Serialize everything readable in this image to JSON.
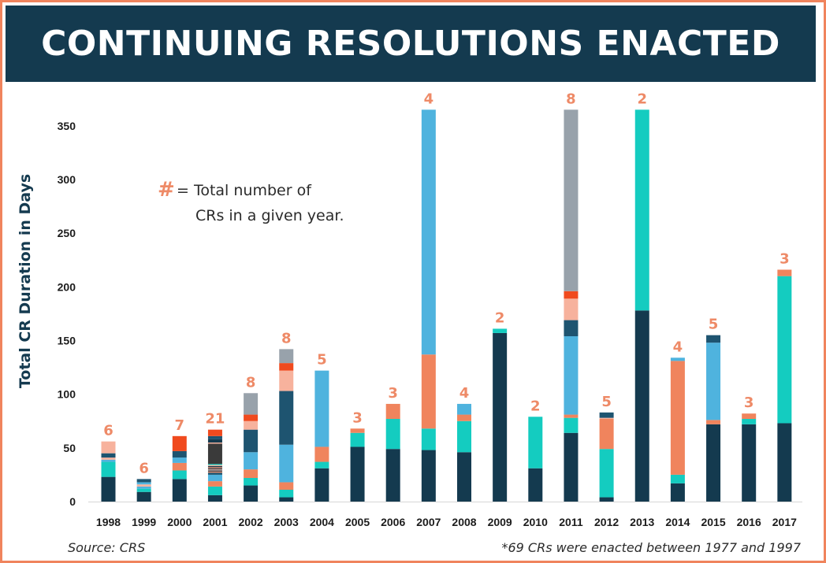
{
  "title": "CONTINUING RESOLUTIONS ENACTED",
  "legend": {
    "symbol": "#",
    "line1": "= Total number of",
    "line2": "CRs in a given year."
  },
  "source": "Source: CRS",
  "footnote": "*69 CRs were enacted between 1977 and 1997",
  "colors": {
    "navy": "#143a4f",
    "teal": "#14ccc0",
    "salmon": "#f0845d",
    "sky": "#4fb3de",
    "steel": "#1e5470",
    "peach": "#f7b29d",
    "red": "#f04a1e",
    "charcoal": "#3a3a3a",
    "gray": "#98a2ab",
    "count": "#ee8a67"
  },
  "chart_data": {
    "type": "bar",
    "stacked": true,
    "title": "CONTINUING RESOLUTIONS ENACTED",
    "xlabel": "",
    "ylabel": "Total CR Duration in Days",
    "ylim": [
      0,
      365
    ],
    "yticks": [
      0,
      50,
      100,
      150,
      200,
      250,
      300,
      350
    ],
    "categories": [
      "1998",
      "1999",
      "2000",
      "2001",
      "2002",
      "2003",
      "2004",
      "2005",
      "2006",
      "2007",
      "2008",
      "2009",
      "2010",
      "2011",
      "2012",
      "2013",
      "2014",
      "2015",
      "2016",
      "2017"
    ],
    "cr_counts": [
      6,
      6,
      7,
      21,
      8,
      8,
      5,
      3,
      3,
      4,
      4,
      2,
      2,
      8,
      5,
      2,
      4,
      5,
      3,
      3
    ],
    "segments": [
      [
        [
          "navy",
          23
        ],
        [
          "teal",
          14
        ],
        [
          "sky",
          2
        ],
        [
          "peach",
          2
        ],
        [
          "steel",
          4
        ],
        [
          "peach",
          11
        ]
      ],
      [
        [
          "navy",
          9
        ],
        [
          "teal",
          3
        ],
        [
          "sky",
          2
        ],
        [
          "peach",
          2
        ],
        [
          "sky",
          2
        ],
        [
          "steel",
          3
        ]
      ],
      [
        [
          "navy",
          21
        ],
        [
          "teal",
          8
        ],
        [
          "salmon",
          7
        ],
        [
          "sky",
          5
        ],
        [
          "steel",
          6
        ],
        [
          "red",
          14
        ]
      ],
      [
        [
          "navy",
          6
        ],
        [
          "teal",
          8
        ],
        [
          "salmon",
          5
        ],
        [
          "sky",
          6
        ],
        [
          "steel",
          2
        ],
        [
          "salmon",
          1
        ],
        [
          "navy",
          1
        ],
        [
          "peach",
          1
        ],
        [
          "navy",
          1
        ],
        [
          "salmon",
          1
        ],
        [
          "navy",
          1
        ],
        [
          "peach",
          1
        ],
        [
          "teal",
          1
        ],
        [
          "charcoal",
          19
        ],
        [
          "peach",
          1
        ],
        [
          "navy",
          3
        ],
        [
          "steel",
          3
        ],
        [
          "red",
          6
        ]
      ],
      [
        [
          "navy",
          15
        ],
        [
          "teal",
          7
        ],
        [
          "salmon",
          8
        ],
        [
          "sky",
          16
        ],
        [
          "steel",
          21
        ],
        [
          "peach",
          8
        ],
        [
          "red",
          6
        ],
        [
          "gray",
          20
        ]
      ],
      [
        [
          "navy",
          4
        ],
        [
          "teal",
          7
        ],
        [
          "salmon",
          7
        ],
        [
          "sky",
          35
        ],
        [
          "steel",
          50
        ],
        [
          "peach",
          19
        ],
        [
          "red",
          7
        ],
        [
          "gray",
          13
        ]
      ],
      [
        [
          "navy",
          31
        ],
        [
          "teal",
          6
        ],
        [
          "salmon",
          14
        ],
        [
          "sky",
          71
        ]
      ],
      [
        [
          "navy",
          51
        ],
        [
          "teal",
          13
        ],
        [
          "salmon",
          4
        ]
      ],
      [
        [
          "navy",
          49
        ],
        [
          "teal",
          28
        ],
        [
          "salmon",
          14
        ]
      ],
      [
        [
          "navy",
          48
        ],
        [
          "teal",
          20
        ],
        [
          "salmon",
          69
        ],
        [
          "sky",
          228
        ]
      ],
      [
        [
          "navy",
          46
        ],
        [
          "teal",
          29
        ],
        [
          "salmon",
          6
        ],
        [
          "sky",
          10
        ]
      ],
      [
        [
          "navy",
          157
        ],
        [
          "teal",
          4
        ]
      ],
      [
        [
          "navy",
          31
        ],
        [
          "teal",
          48
        ]
      ],
      [
        [
          "navy",
          64
        ],
        [
          "teal",
          14
        ],
        [
          "salmon",
          3
        ],
        [
          "sky",
          73
        ],
        [
          "steel",
          15
        ],
        [
          "peach",
          20
        ],
        [
          "red",
          7
        ],
        [
          "gray",
          169
        ]
      ],
      [
        [
          "navy",
          4
        ],
        [
          "teal",
          45
        ],
        [
          "salmon",
          28
        ],
        [
          "peach",
          1
        ],
        [
          "steel",
          5
        ]
      ],
      [
        [
          "navy",
          178
        ],
        [
          "teal",
          187
        ]
      ],
      [
        [
          "navy",
          17
        ],
        [
          "teal",
          8
        ],
        [
          "salmon",
          106
        ],
        [
          "sky",
          3
        ]
      ],
      [
        [
          "navy",
          72
        ],
        [
          "salmon",
          4
        ],
        [
          "sky",
          72
        ],
        [
          "steel",
          7
        ]
      ],
      [
        [
          "navy",
          72
        ],
        [
          "teal",
          5
        ],
        [
          "salmon",
          5
        ]
      ],
      [
        [
          "navy",
          73
        ],
        [
          "teal",
          137
        ],
        [
          "salmon",
          6
        ]
      ]
    ]
  }
}
